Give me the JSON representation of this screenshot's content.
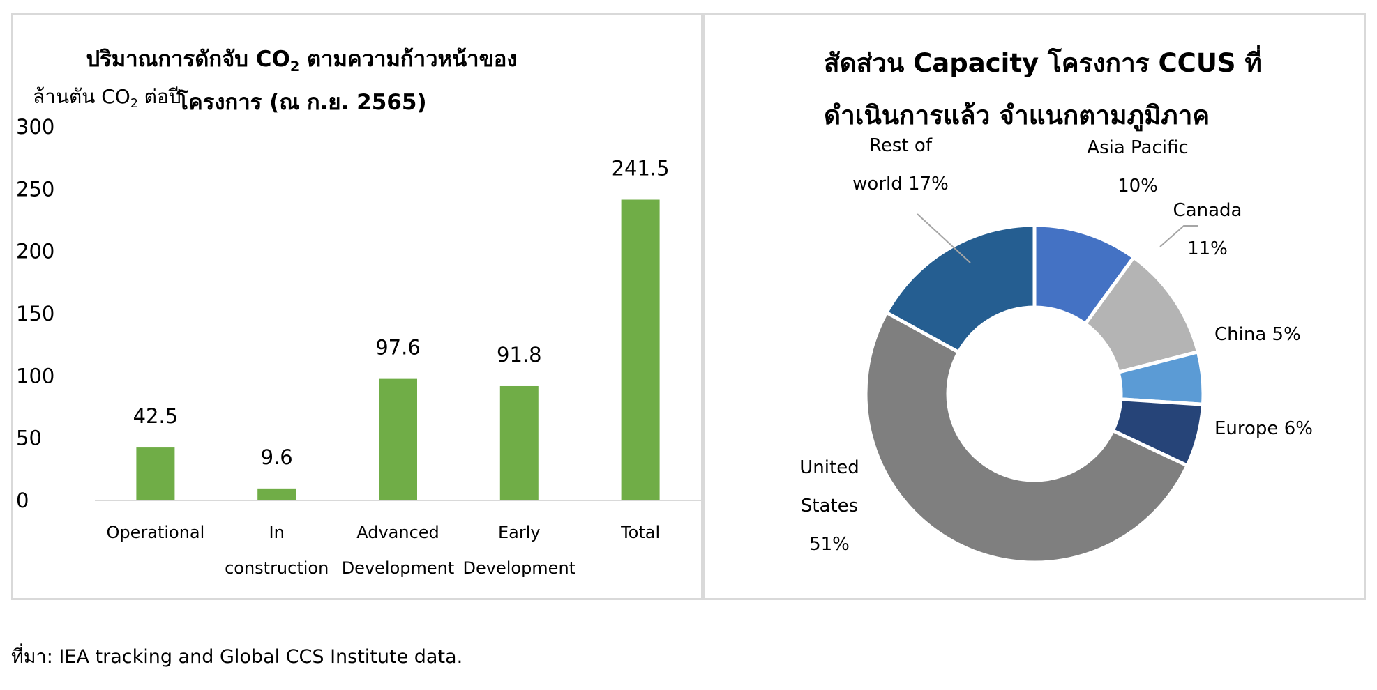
{
  "bar_chart": {
    "title_line1_prefix": "ปริมาณการดักจับ CO",
    "title_line1_sub": "2",
    "title_line1_suffix": " ตามความก้าวหน้าของ",
    "title_line2": "โครงการ (ณ ก.ย. 2565)",
    "unit_prefix": "ล้านตัน CO",
    "unit_sub": "2",
    "unit_suffix": " ต่อปี",
    "bar_color": "#70ad47"
  },
  "donut_chart": {
    "title_line1": "สัดส่วน Capacity โครงการ CCUS ที่",
    "title_line2": "ดำเนินการแล้ว จำแนกตามภูมิภาค"
  },
  "chart_data": [
    {
      "type": "bar",
      "title": "ปริมาณการดักจับ CO2 ตามความก้าวหน้าของโครงการ (ณ ก.ย. 2565)",
      "ylabel": "ล้านตัน CO2 ต่อปี",
      "categories": [
        [
          "Operational"
        ],
        [
          "In",
          "construction"
        ],
        [
          "Advanced",
          "Development"
        ],
        [
          "Early",
          "Development"
        ],
        [
          "Total"
        ]
      ],
      "values": [
        42.5,
        9.6,
        97.6,
        91.8,
        241.5
      ],
      "data_labels": [
        "42.5",
        "9.6",
        "97.6",
        "91.8",
        "241.5"
      ],
      "ylim": [
        0,
        300
      ],
      "yticks": [
        "0",
        "50",
        "100",
        "150",
        "200",
        "250",
        "300"
      ],
      "grid": false,
      "legend": "none"
    },
    {
      "type": "pie",
      "subtype": "donut",
      "title": "สัดส่วน Capacity โครงการ CCUS ที่ดำเนินการแล้ว จำแนกตามภูมิภาค",
      "slices": [
        {
          "label": [
            "Asia Pacific",
            "10%"
          ],
          "value": 10,
          "color": "#4472c4"
        },
        {
          "label": [
            "Canada",
            "11%"
          ],
          "value": 11,
          "color": "#b4b4b4"
        },
        {
          "label": [
            "China 5%"
          ],
          "value": 5,
          "color": "#5b9bd5"
        },
        {
          "label": [
            "Europe 6%"
          ],
          "value": 6,
          "color": "#264478"
        },
        {
          "label": [
            "United",
            "States",
            "51%"
          ],
          "value": 51,
          "color": "#7f7f7f"
        },
        {
          "label": [
            "Rest of",
            "world 17%"
          ],
          "value": 17,
          "color": "#255e91"
        }
      ],
      "legend": "none"
    }
  ],
  "source_note": "ที่มา: IEA tracking and Global CCS Institute data."
}
